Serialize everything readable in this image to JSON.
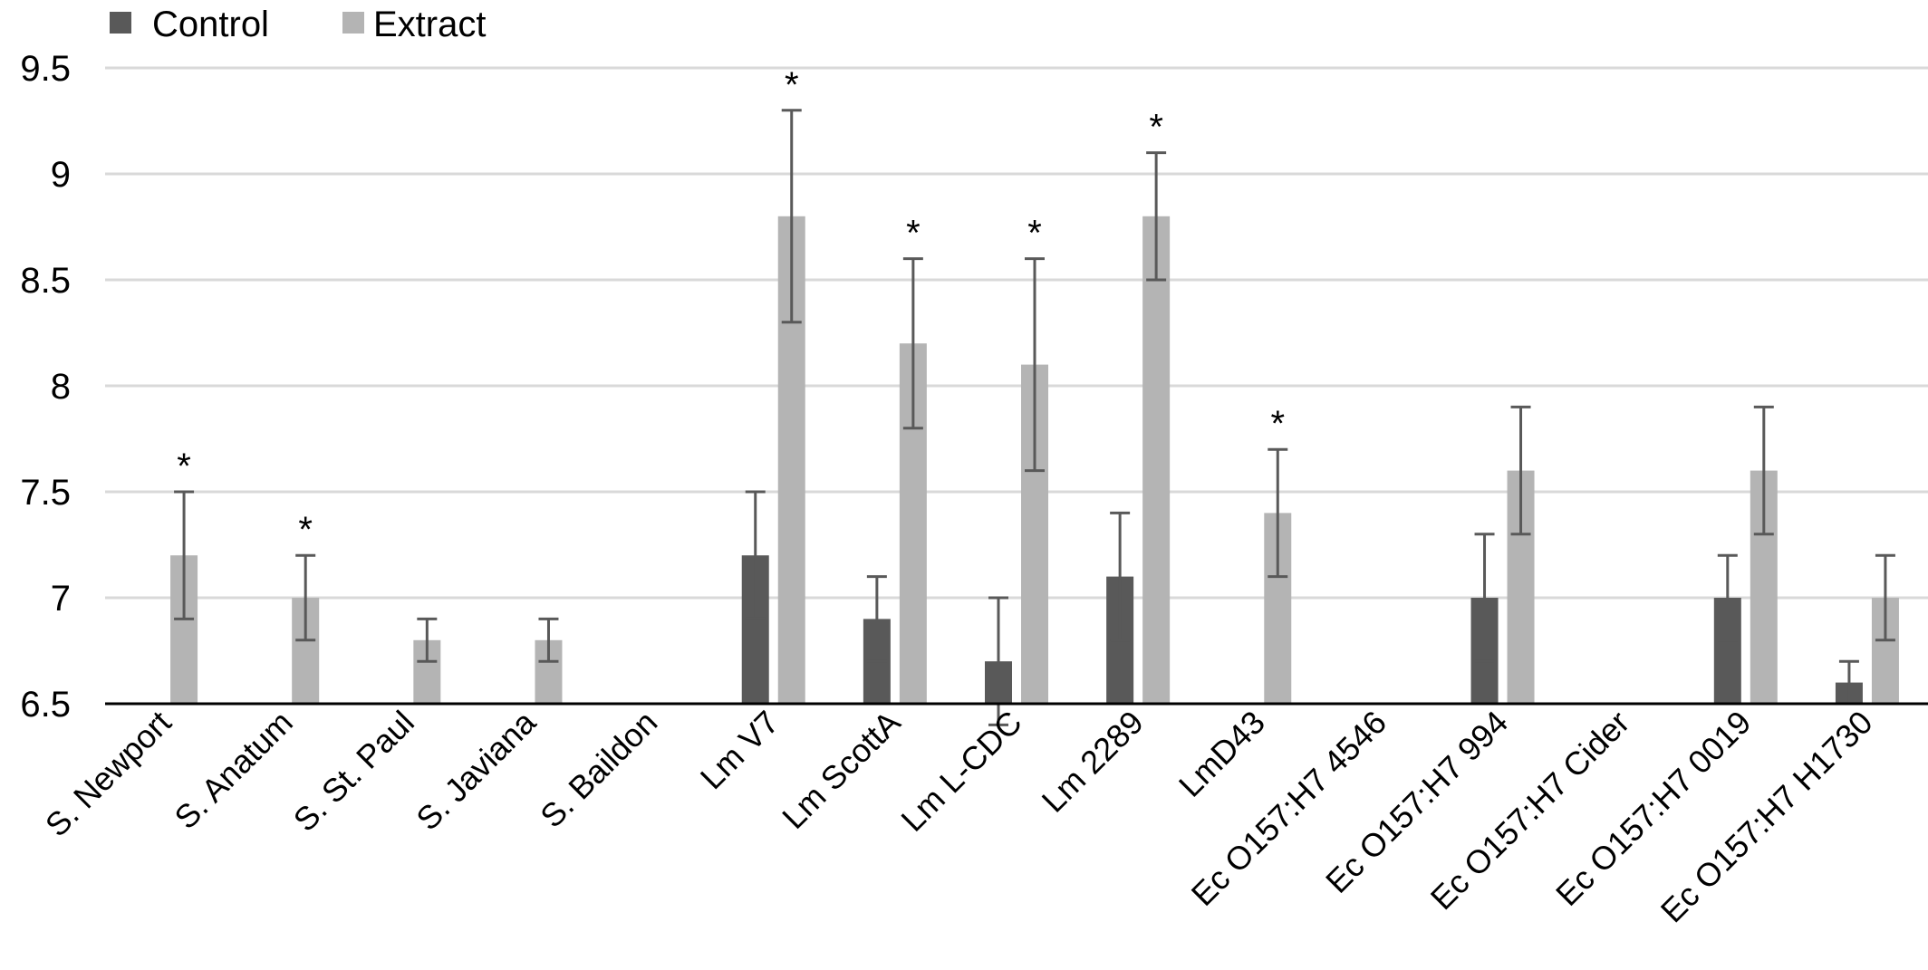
{
  "chart_data": {
    "type": "bar",
    "title": "",
    "xlabel": "",
    "ylabel": "",
    "ylim": [
      6.5,
      9.5
    ],
    "yticks": [
      "6.5",
      "7",
      "7.5",
      "8",
      "8.5",
      "9",
      "9.5"
    ],
    "ytick_values": [
      6.5,
      7,
      7.5,
      8,
      8.5,
      9,
      9.5
    ],
    "grid": true,
    "legend_position": "top-left",
    "categories": [
      "S. Newport",
      "S. Anatum",
      "S. St. Paul",
      "S. Javiana",
      "S. Baildon",
      "Lm V7",
      "Lm ScottA",
      "Lm L-CDC",
      "Lm  2289",
      "LmD43",
      "Ec O157:H7 4546",
      "Ec O157:H7 994",
      "Ec O157:H7 Cider",
      "Ec O157:H7 0019",
      "Ec O157:H7 H1730"
    ],
    "series": [
      {
        "name": "Control",
        "color": "#595959",
        "values": [
          null,
          null,
          null,
          null,
          null,
          7.2,
          6.9,
          6.7,
          7.1,
          null,
          null,
          7.0,
          null,
          7.0,
          6.6
        ],
        "errors": [
          null,
          null,
          null,
          null,
          null,
          0.3,
          0.2,
          0.3,
          0.3,
          null,
          null,
          0.3,
          null,
          0.2,
          0.1
        ]
      },
      {
        "name": "Extract",
        "color": "#b4b4b4",
        "values": [
          7.2,
          7.0,
          6.8,
          6.8,
          null,
          8.8,
          8.2,
          8.1,
          8.8,
          7.4,
          null,
          7.6,
          null,
          7.6,
          7.0
        ],
        "errors": [
          0.3,
          0.2,
          0.1,
          0.1,
          null,
          0.5,
          0.4,
          0.5,
          0.3,
          0.3,
          null,
          0.3,
          null,
          0.3,
          0.2
        ]
      }
    ],
    "significance_marker": "*",
    "significant": [
      true,
      true,
      false,
      false,
      false,
      true,
      true,
      true,
      true,
      true,
      false,
      false,
      false,
      false,
      false
    ],
    "axis_color": "#000000",
    "grid_color": "#d9d9d9",
    "errorbar_color": "#595959"
  }
}
